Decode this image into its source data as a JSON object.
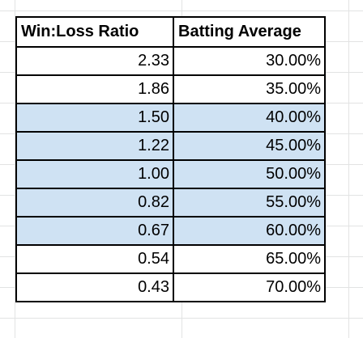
{
  "table": {
    "headers": [
      "Win:Loss Ratio",
      "Batting Average"
    ],
    "highlight_color": "#cfe2f3",
    "rows": [
      {
        "ratio": "2.33",
        "avg": "30.00%",
        "highlighted": false
      },
      {
        "ratio": "1.86",
        "avg": "35.00%",
        "highlighted": false
      },
      {
        "ratio": "1.50",
        "avg": "40.00%",
        "highlighted": true
      },
      {
        "ratio": "1.22",
        "avg": "45.00%",
        "highlighted": true
      },
      {
        "ratio": "1.00",
        "avg": "50.00%",
        "highlighted": true
      },
      {
        "ratio": "0.82",
        "avg": "55.00%",
        "highlighted": true
      },
      {
        "ratio": "0.67",
        "avg": "60.00%",
        "highlighted": true
      },
      {
        "ratio": "0.54",
        "avg": "65.00%",
        "highlighted": false
      },
      {
        "ratio": "0.43",
        "avg": "70.00%",
        "highlighted": false
      }
    ]
  }
}
